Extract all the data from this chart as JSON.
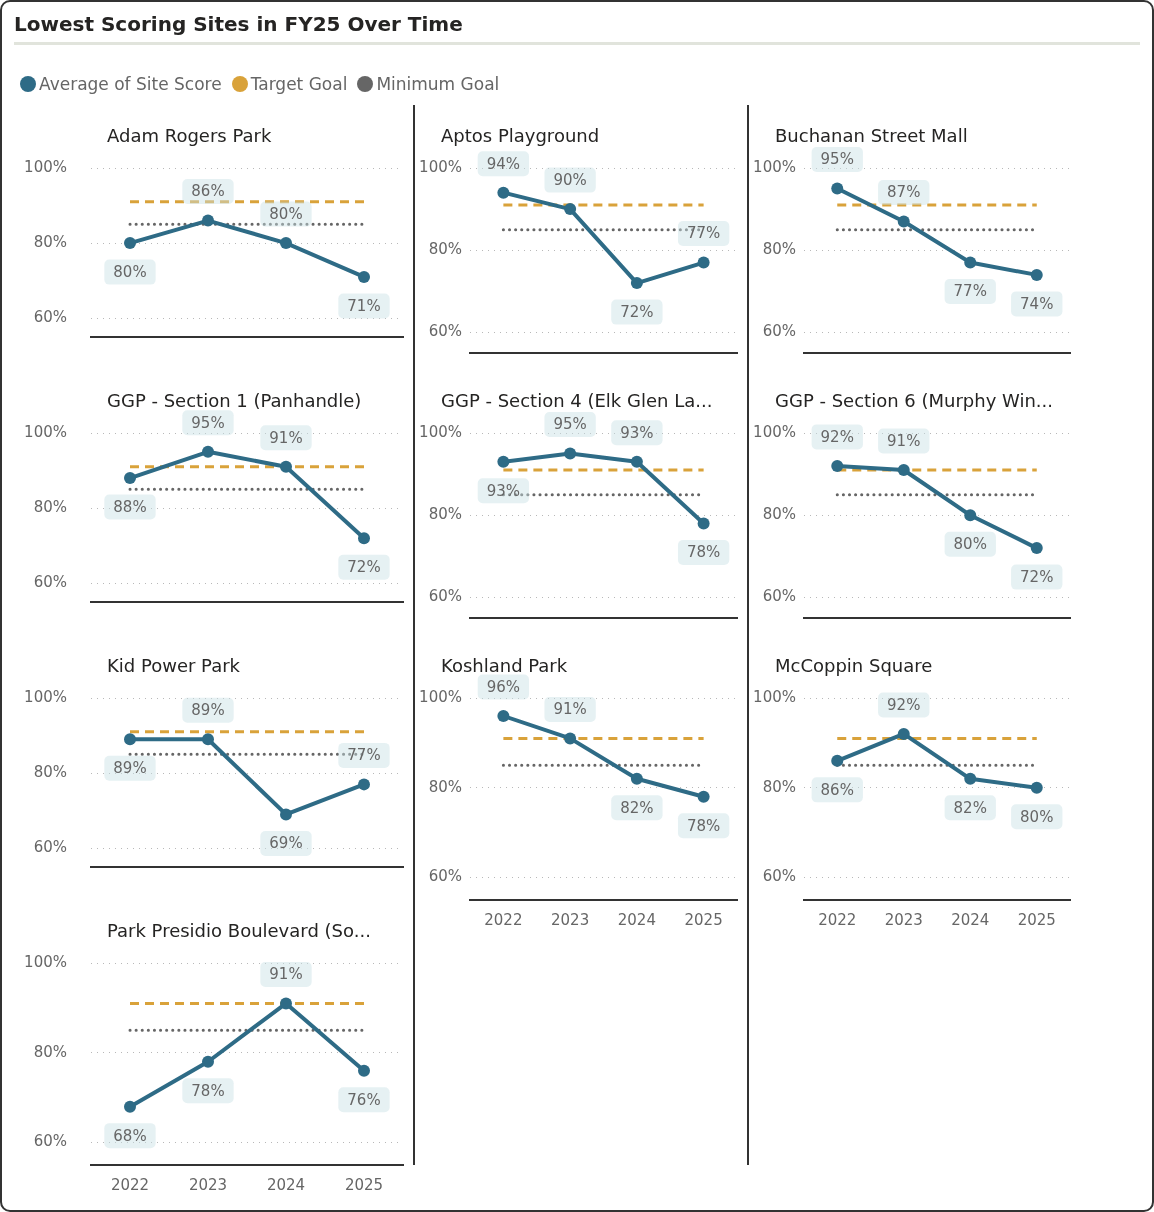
{
  "chart_data": [
    {
      "type": "line",
      "title": "Lowest Scoring Sites in FY25 Over Time",
      "subtitle": "Adam Rogers Park",
      "legend": "top left",
      "categories": [
        "2022",
        "2023",
        "2024",
        "2025"
      ],
      "ylim": [
        55,
        100
      ],
      "yticks": [
        {
          "value": 100,
          "label": "100%"
        },
        {
          "value": 80,
          "label": "80%"
        },
        {
          "value": 60,
          "label": "60%"
        }
      ],
      "grid": "y",
      "tick_labels": "y",
      "series": [
        {
          "name": "Average of Site Score",
          "color": "#2e6b86",
          "marker": "circle",
          "values": [
            80,
            86,
            80,
            71
          ],
          "value_labels": [
            "80%",
            "86%",
            "80%",
            "71%"
          ]
        },
        {
          "name": "Target Goal",
          "color": "#d9a23a",
          "marker": "none",
          "line_style": "dashed",
          "values": [
            91,
            91,
            91,
            91
          ]
        },
        {
          "name": "Minimum Goal",
          "color": "#666666",
          "marker": "none",
          "line_style": "dotted",
          "values": [
            85,
            85,
            85,
            85
          ]
        }
      ]
    },
    {
      "type": "line",
      "subtitle": "Aptos Playground",
      "categories": [
        "2022",
        "2023",
        "2024",
        "2025"
      ],
      "ylim": [
        55,
        100
      ],
      "yticks": [
        {
          "value": 100,
          "label": "100%"
        },
        {
          "value": 80,
          "label": "80%"
        },
        {
          "value": 60,
          "label": "60%"
        }
      ],
      "grid": "y",
      "tick_labels": "y",
      "series": [
        {
          "color": "#2e6b86",
          "marker": "circle",
          "values": [
            94,
            90,
            72,
            77
          ],
          "value_labels": [
            "94%",
            "90%",
            "72%",
            "77%"
          ]
        },
        {
          "color": "#d9a23a",
          "marker": "none",
          "line_style": "dashed",
          "values": [
            91,
            91,
            91,
            91
          ]
        },
        {
          "color": "#666666",
          "marker": "none",
          "line_style": "dotted",
          "values": [
            85,
            85,
            85,
            85
          ]
        }
      ]
    },
    {
      "type": "line",
      "subtitle": "Buchanan Street Mall",
      "categories": [
        "2022",
        "2023",
        "2024",
        "2025"
      ],
      "ylim": [
        55,
        100
      ],
      "yticks": [
        {
          "value": 100,
          "label": "100%"
        },
        {
          "value": 80,
          "label": "80%"
        },
        {
          "value": 60,
          "label": "60%"
        }
      ],
      "grid": "y",
      "tick_labels": "y",
      "series": [
        {
          "color": "#2e6b86",
          "marker": "circle",
          "values": [
            95,
            87,
            77,
            74
          ],
          "value_labels": [
            "95%",
            "87%",
            "77%",
            "74%"
          ]
        },
        {
          "color": "#d9a23a",
          "marker": "none",
          "line_style": "dashed",
          "values": [
            91,
            91,
            91,
            91
          ]
        },
        {
          "color": "#666666",
          "marker": "none",
          "line_style": "dotted",
          "values": [
            85,
            85,
            85,
            85
          ]
        }
      ]
    },
    {
      "type": "line",
      "subtitle": "GGP - Section 1 (Panhandle)",
      "categories": [
        "2022",
        "2023",
        "2024",
        "2025"
      ],
      "ylim": [
        55,
        100
      ],
      "yticks": [
        {
          "value": 100,
          "label": "100%"
        },
        {
          "value": 80,
          "label": "80%"
        },
        {
          "value": 60,
          "label": "60%"
        }
      ],
      "grid": "y",
      "tick_labels": "y",
      "series": [
        {
          "color": "#2e6b86",
          "marker": "circle",
          "values": [
            88,
            95,
            91,
            72
          ],
          "value_labels": [
            "88%",
            "95%",
            "91%",
            "72%"
          ]
        },
        {
          "color": "#d9a23a",
          "marker": "none",
          "line_style": "dashed",
          "values": [
            91,
            91,
            91,
            91
          ]
        },
        {
          "color": "#666666",
          "marker": "none",
          "line_style": "dotted",
          "values": [
            85,
            85,
            85,
            85
          ]
        }
      ]
    },
    {
      "type": "line",
      "subtitle": "GGP - Section 4 (Elk Glen La...",
      "categories": [
        "2022",
        "2023",
        "2024",
        "2025"
      ],
      "ylim": [
        55,
        100
      ],
      "yticks": [
        {
          "value": 100,
          "label": "100%"
        },
        {
          "value": 80,
          "label": "80%"
        },
        {
          "value": 60,
          "label": "60%"
        }
      ],
      "grid": "y",
      "tick_labels": "y",
      "series": [
        {
          "color": "#2e6b86",
          "marker": "circle",
          "values": [
            93,
            95,
            93,
            78
          ],
          "value_labels": [
            "93%",
            "95%",
            "93%",
            "78%"
          ]
        },
        {
          "color": "#d9a23a",
          "marker": "none",
          "line_style": "dashed",
          "values": [
            91,
            91,
            91,
            91
          ]
        },
        {
          "color": "#666666",
          "marker": "none",
          "line_style": "dotted",
          "values": [
            85,
            85,
            85,
            85
          ]
        }
      ]
    },
    {
      "type": "line",
      "subtitle": "GGP - Section 6 (Murphy Win...",
      "categories": [
        "2022",
        "2023",
        "2024",
        "2025"
      ],
      "ylim": [
        55,
        100
      ],
      "yticks": [
        {
          "value": 100,
          "label": "100%"
        },
        {
          "value": 80,
          "label": "80%"
        },
        {
          "value": 60,
          "label": "60%"
        }
      ],
      "grid": "y",
      "tick_labels": "y",
      "series": [
        {
          "color": "#2e6b86",
          "marker": "circle",
          "values": [
            92,
            91,
            80,
            72
          ],
          "value_labels": [
            "92%",
            "91%",
            "80%",
            "72%"
          ]
        },
        {
          "color": "#d9a23a",
          "marker": "none",
          "line_style": "dashed",
          "values": [
            91,
            91,
            91,
            91
          ]
        },
        {
          "color": "#666666",
          "marker": "none",
          "line_style": "dotted",
          "values": [
            85,
            85,
            85,
            85
          ]
        }
      ]
    },
    {
      "type": "line",
      "subtitle": "Kid Power Park",
      "categories": [
        "2022",
        "2023",
        "2024",
        "2025"
      ],
      "ylim": [
        55,
        100
      ],
      "yticks": [
        {
          "value": 100,
          "label": "100%"
        },
        {
          "value": 80,
          "label": "80%"
        },
        {
          "value": 60,
          "label": "60%"
        }
      ],
      "grid": "y",
      "tick_labels": "y",
      "series": [
        {
          "color": "#2e6b86",
          "marker": "circle",
          "values": [
            89,
            89,
            69,
            77
          ],
          "value_labels": [
            "89%",
            "89%",
            "69%",
            "77%"
          ]
        },
        {
          "color": "#d9a23a",
          "marker": "none",
          "line_style": "dashed",
          "values": [
            91,
            91,
            91,
            91
          ]
        },
        {
          "color": "#666666",
          "marker": "none",
          "line_style": "dotted",
          "values": [
            85,
            85,
            85,
            85
          ]
        }
      ]
    },
    {
      "type": "line",
      "subtitle": "Koshland Park",
      "categories": [
        "2022",
        "2023",
        "2024",
        "2025"
      ],
      "ylim": [
        55,
        100
      ],
      "yticks": [
        {
          "value": 100,
          "label": "100%"
        },
        {
          "value": 80,
          "label": "80%"
        },
        {
          "value": 60,
          "label": "60%"
        }
      ],
      "grid": "y",
      "series": [
        {
          "color": "#2e6b86",
          "marker": "circle",
          "values": [
            96,
            91,
            82,
            78
          ],
          "value_labels": [
            "96%",
            "91%",
            "82%",
            "78%"
          ]
        },
        {
          "color": "#d9a23a",
          "marker": "none",
          "line_style": "dashed",
          "values": [
            91,
            91,
            91,
            91
          ]
        },
        {
          "color": "#666666",
          "marker": "none",
          "line_style": "dotted",
          "values": [
            85,
            85,
            85,
            85
          ]
        }
      ]
    },
    {
      "type": "line",
      "subtitle": "McCoppin Square",
      "categories": [
        "2022",
        "2023",
        "2024",
        "2025"
      ],
      "ylim": [
        55,
        100
      ],
      "yticks": [
        {
          "value": 100,
          "label": "100%"
        },
        {
          "value": 80,
          "label": "80%"
        },
        {
          "value": 60,
          "label": "60%"
        }
      ],
      "grid": "y",
      "series": [
        {
          "color": "#2e6b86",
          "marker": "circle",
          "values": [
            86,
            92,
            82,
            80
          ],
          "value_labels": [
            "86%",
            "92%",
            "82%",
            "80%"
          ]
        },
        {
          "color": "#d9a23a",
          "marker": "none",
          "line_style": "dashed",
          "values": [
            91,
            91,
            91,
            91
          ]
        },
        {
          "color": "#666666",
          "marker": "none",
          "line_style": "dotted",
          "values": [
            85,
            85,
            85,
            85
          ]
        }
      ]
    },
    {
      "type": "line",
      "subtitle": "Park Presidio Boulevard (So...",
      "categories": [
        "2022",
        "2023",
        "2024",
        "2025"
      ],
      "ylim": [
        55,
        100
      ],
      "yticks": [
        {
          "value": 100,
          "label": "100%"
        },
        {
          "value": 80,
          "label": "80%"
        },
        {
          "value": 60,
          "label": "60%"
        }
      ],
      "grid": "y",
      "series": [
        {
          "color": "#2e6b86",
          "marker": "circle",
          "values": [
            68,
            78,
            91,
            76
          ],
          "value_labels": [
            "68%",
            "78%",
            "91%",
            "76%"
          ]
        },
        {
          "color": "#d9a23a",
          "marker": "none",
          "line_style": "dashed",
          "values": [
            91,
            91,
            91,
            91
          ]
        },
        {
          "color": "#666666",
          "marker": "none",
          "line_style": "dotted",
          "values": [
            85,
            85,
            85,
            85
          ]
        }
      ]
    }
  ]
}
